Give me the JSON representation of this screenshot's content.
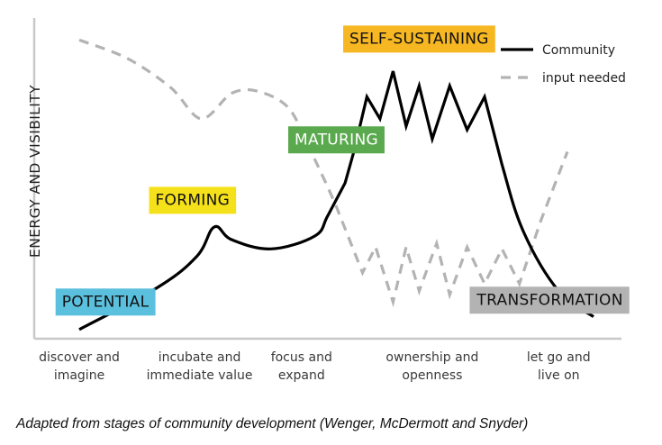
{
  "chart_data": {
    "type": "line",
    "title": "",
    "ylabel": "ENERGY AND VISIBILITY",
    "xlabel": "",
    "x_categories": [
      [
        "discover and",
        "imagine"
      ],
      [
        "incubate and",
        "immediate value"
      ],
      [
        "focus and",
        "expand"
      ],
      [
        "ownership and",
        "openness"
      ],
      [
        "let go and",
        "live on"
      ]
    ],
    "series": [
      {
        "name": "Community",
        "style": "solid",
        "color": "#000000",
        "x": [
          0.0,
          0.9,
          1.35,
          1.55,
          1.75,
          2.2,
          2.7,
          2.85,
          3.05,
          3.15,
          3.3,
          3.45,
          3.6,
          3.75,
          3.9,
          4.05,
          4.25,
          4.45,
          4.65,
          4.85,
          5.1,
          5.5,
          5.9
        ],
        "y": [
          0.5,
          2.8,
          4.5,
          6.1,
          5.4,
          4.9,
          5.6,
          6.7,
          8.5,
          10.2,
          13.2,
          12.0,
          14.6,
          11.6,
          13.8,
          10.9,
          13.8,
          11.4,
          13.2,
          9.5,
          5.8,
          2.6,
          1.2
        ]
      },
      {
        "name": "input needed",
        "style": "dashed",
        "color": "#b3b3b3",
        "x": [
          0.0,
          0.55,
          1.05,
          1.4,
          1.75,
          2.05,
          2.4,
          2.65,
          2.95,
          3.25,
          3.4,
          3.6,
          3.75,
          3.9,
          4.1,
          4.25,
          4.45,
          4.65,
          4.85,
          5.05,
          5.3,
          5.6
        ],
        "y": [
          16.3,
          15.3,
          13.7,
          12.0,
          13.4,
          13.5,
          12.6,
          10.3,
          7.2,
          3.6,
          5.0,
          2.0,
          5.0,
          2.6,
          5.2,
          2.4,
          5.0,
          3.0,
          4.9,
          3.0,
          6.5,
          10.2
        ]
      }
    ],
    "xlim": [
      0,
      6.2
    ],
    "ylim": [
      0,
      17.5
    ],
    "legend": {
      "position": "top-right",
      "entries": [
        "Community",
        "input needed"
      ]
    },
    "stage_labels": [
      {
        "text": "POTENTIAL",
        "color": "#5bc0de",
        "text_color": "#111111",
        "x": 0.3,
        "y": 2.05
      },
      {
        "text": "FORMING",
        "color": "#f5e11a",
        "text_color": "#111111",
        "x": 1.3,
        "y": 7.6
      },
      {
        "text": "MATURING",
        "color": "#5aa94e",
        "text_color": "#ffffff",
        "x": 2.95,
        "y": 10.9
      },
      {
        "text": "SELF-SUSTAINING",
        "color": "#f6b722",
        "text_color": "#111111",
        "x": 3.9,
        "y": 16.4
      },
      {
        "text": "TRANSFORMATION",
        "color": "#b3b3b3",
        "text_color": "#111111",
        "x": 5.4,
        "y": 2.15
      }
    ],
    "grid": false
  },
  "caption": "Adapted from stages of community development (Wenger, McDermott and Snyder)"
}
